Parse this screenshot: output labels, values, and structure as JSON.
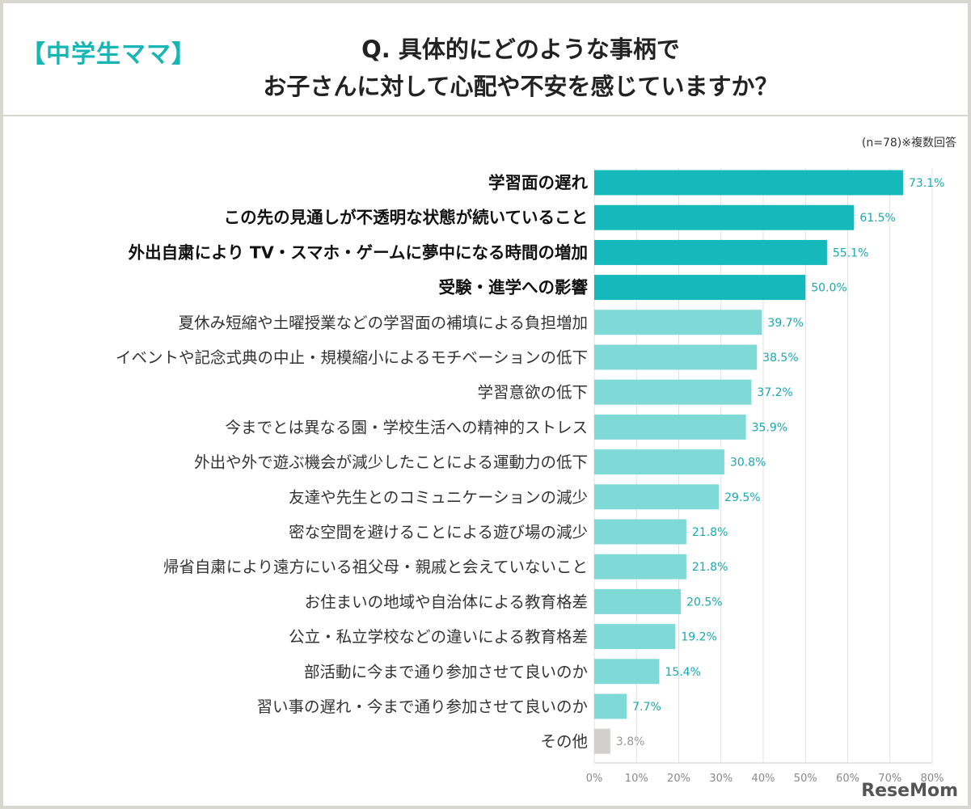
{
  "header": {
    "tag": "【中学生ママ】",
    "title_line1": "Q. 具体的にどのような事柄で",
    "title_line2": "お子さんに対して心配や不安を感じていますか？"
  },
  "note": "(n=78)※複数回答",
  "logo": "ReseMom",
  "colors": {
    "top4": "#15b8bb",
    "normal": "#7fd9d6",
    "other": "#d3cfcd",
    "value_text": "#18a8b0",
    "other_text": "#999999"
  },
  "chart_data": {
    "type": "bar",
    "orientation": "horizontal",
    "categories": [
      "学習面の遅れ",
      "この先の見通しが不透明な状態が続いていること",
      "外出自粛により TV・スマホ・ゲームに夢中になる時間の増加",
      "受験・進学への影響",
      "夏休み短縮や土曜授業などの学習面の補填による負担増加",
      "イベントや記念式典の中止・規模縮小によるモチベーションの低下",
      "学習意欲の低下",
      "今までとは異なる園・学校生活への精神的ストレス",
      "外出や外で遊ぶ機会が減少したことによる運動力の低下",
      "友達や先生とのコミュニケーションの減少",
      "密な空間を避けることによる遊び場の減少",
      "帰省自粛により遠方にいる祖父母・親戚と会えていないこと",
      "お住まいの地域や自治体による教育格差",
      "公立・私立学校などの違いによる教育格差",
      "部活動に今まで通り参加させて良いのか",
      "習い事の遅れ・今まで通り参加させて良いのか",
      "その他"
    ],
    "values": [
      73.1,
      61.5,
      55.1,
      50.0,
      39.7,
      38.5,
      37.2,
      35.9,
      30.8,
      29.5,
      21.8,
      21.8,
      20.5,
      19.2,
      15.4,
      7.7,
      3.8
    ],
    "value_labels": [
      "73.1%",
      "61.5%",
      "55.1%",
      "50.0%",
      "39.7%",
      "38.5%",
      "37.2%",
      "35.9%",
      "30.8%",
      "29.5%",
      "21.8%",
      "21.8%",
      "20.5%",
      "19.2%",
      "15.4%",
      "7.7%",
      "3.8%"
    ],
    "highlight_top": 4,
    "xlim": [
      0,
      80
    ],
    "xticks": [
      "0%",
      "10%",
      "20%",
      "30%",
      "40%",
      "50%",
      "60%",
      "70%",
      "80%"
    ],
    "grid": true
  }
}
